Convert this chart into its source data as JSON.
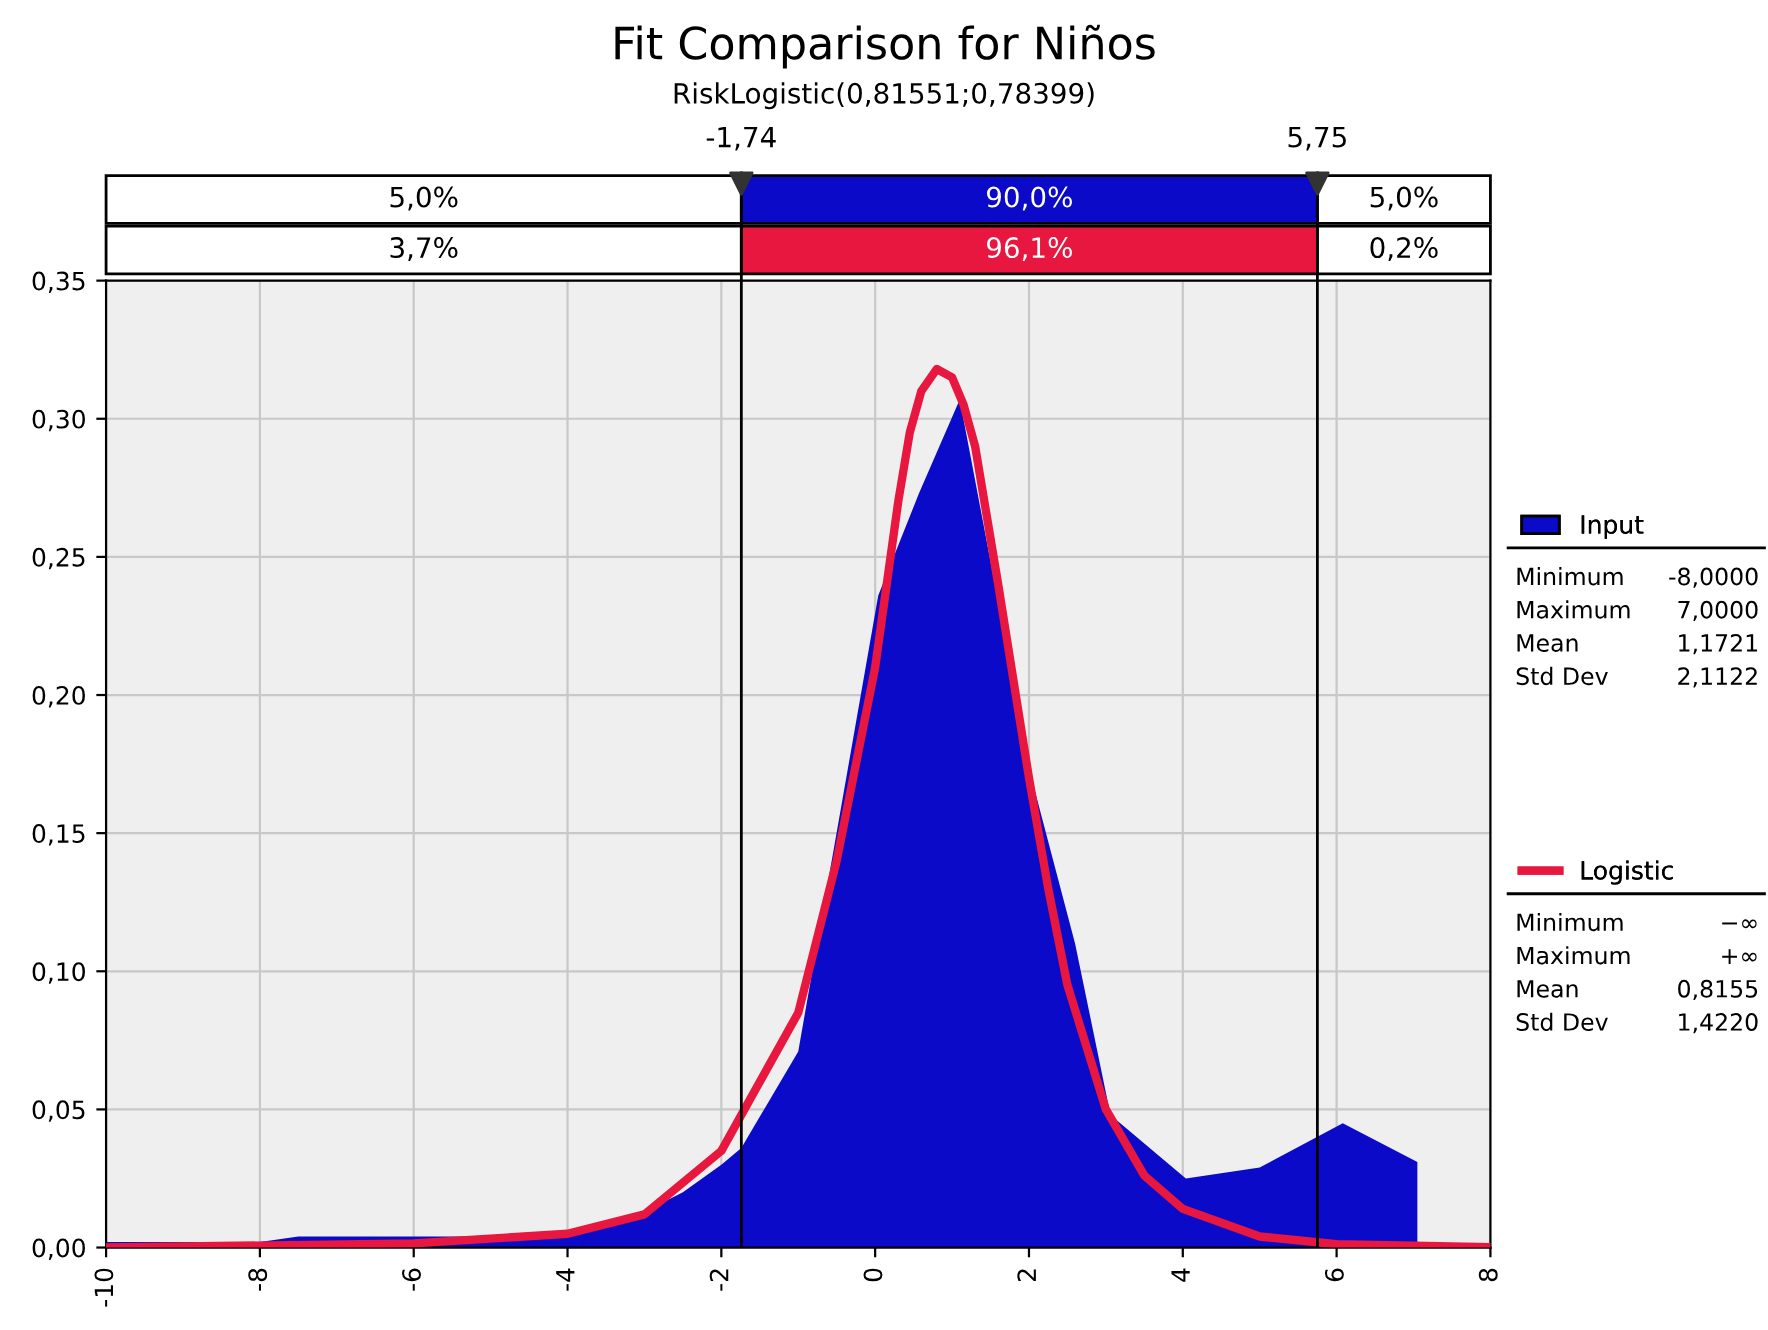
{
  "chart_data": {
    "type": "area",
    "title": "Fit Comparison for Niños",
    "subtitle": "RiskLogistic(0,81551;0,78399)",
    "series": [
      {
        "name": "Input",
        "color": "#0a0ac8",
        "x": [
          -10,
          -8,
          -7.5,
          -6,
          -4,
          -3.5,
          -3,
          -2.5,
          -2,
          -1.74,
          -1,
          0.04,
          0.57,
          1.1,
          1.55,
          1.9,
          2.6,
          3.06,
          4.04,
          5.0,
          6.08,
          7.05,
          7.05
        ],
        "values": [
          0.002,
          0.002,
          0.004,
          0.004,
          0.004,
          0.008,
          0.013,
          0.02,
          0.03,
          0.036,
          0.071,
          0.236,
          0.273,
          0.307,
          0.241,
          0.184,
          0.11,
          0.048,
          0.025,
          0.029,
          0.045,
          0.031,
          0
        ]
      },
      {
        "name": "Logistic",
        "type": "line",
        "color": "#e8173f",
        "x": [
          -10,
          -6,
          -4,
          -3,
          -2,
          -1,
          -0.5,
          0,
          0.3,
          0.45,
          0.6,
          0.8,
          1.0,
          1.15,
          1.3,
          1.45,
          1.6,
          1.8,
          2,
          2.25,
          2.5,
          3,
          3.5,
          4,
          5,
          6,
          8
        ],
        "values": [
          0.0,
          0.0015,
          0.005,
          0.012,
          0.035,
          0.085,
          0.14,
          0.21,
          0.27,
          0.295,
          0.31,
          0.318,
          0.315,
          0.305,
          0.29,
          0.265,
          0.24,
          0.205,
          0.17,
          0.13,
          0.095,
          0.05,
          0.026,
          0.014,
          0.004,
          0.0012,
          0.0001
        ]
      }
    ],
    "xlim": [
      -10,
      8
    ],
    "xticks": [
      -10,
      -8,
      -6,
      -4,
      -2,
      0,
      2,
      4,
      6,
      8
    ],
    "ylim": [
      0,
      0.35
    ],
    "yticks": [
      {
        "value": 0,
        "label": "0,00"
      },
      {
        "value": 0.05,
        "label": "0,05"
      },
      {
        "value": 0.1,
        "label": "0,10"
      },
      {
        "value": 0.15,
        "label": "0,15"
      },
      {
        "value": 0.2,
        "label": "0,20"
      },
      {
        "value": 0.25,
        "label": "0,25"
      },
      {
        "value": 0.3,
        "label": "0,30"
      },
      {
        "value": 0.35,
        "label": "0,35"
      }
    ],
    "ref_lines": [
      {
        "axis": "x",
        "value": -1.74,
        "label": "-1,74",
        "color": "#000000"
      },
      {
        "axis": "x",
        "value": 5.75,
        "label": "5,75",
        "color": "#000000"
      }
    ],
    "annotations": [
      "5,0%",
      "90,0%",
      "5,0%",
      "3,7%",
      "96,1%",
      "0,2%",
      "Minimum",
      "-8,0000",
      "Maximum",
      "7,0000",
      "Mean",
      "1,1721",
      "Std Dev",
      "2,1122",
      "Minimum",
      "−∞",
      "Maximum",
      "+∞",
      "Mean",
      "0,8155",
      "Std Dev",
      "1,4220"
    ],
    "grid": true,
    "legend": "right"
  }
}
